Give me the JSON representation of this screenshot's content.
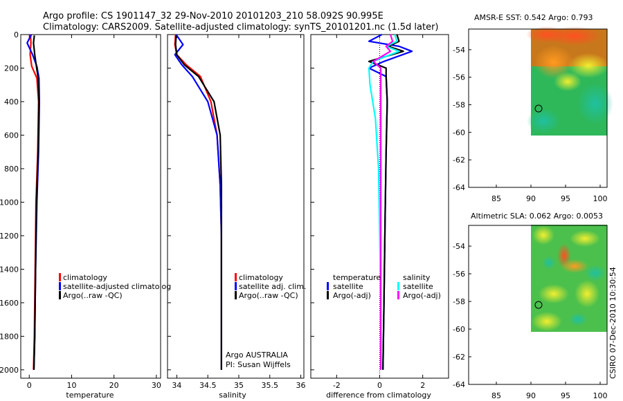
{
  "figure": {
    "title_line1": "Argo profile: CS 1901147_32 29-Nov-2010 20101203_210 58.092S 90.995E",
    "title_line2": "Climatology: CARS2009. Satellite-adjusted climatology: synTS_20101201.nc (1.5d later)",
    "footer": "CSIRO 07-Dec-2010 10:30:54"
  },
  "colors": {
    "climatology": "#ff0000",
    "satellite": "#0000ff",
    "argo": "#000000",
    "sal_satellite": "#00ffff",
    "sal_argo_adj": "#ff00ff"
  },
  "chart_data": [
    {
      "type": "line",
      "id": "temperature",
      "xlabel": "temperature",
      "xlim": [
        -2,
        31
      ],
      "ylim": [
        0,
        2050
      ],
      "xticks": [
        0,
        10,
        20,
        30
      ],
      "yticks": [
        0,
        200,
        400,
        600,
        800,
        1000,
        1200,
        1400,
        1600,
        1800,
        2000
      ],
      "legend": [
        "climatology",
        "satellite-adjusted climatolog",
        "Argo(..raw -QC)"
      ],
      "series": [
        {
          "name": "climatology",
          "color": "red",
          "x": [
            0.3,
            0.4,
            0.2,
            0.6,
            1.8,
            2.2,
            2.0,
            1.6,
            1.4,
            1.2,
            1.0
          ],
          "y": [
            0,
            50,
            120,
            190,
            260,
            400,
            700,
            1000,
            1400,
            1800,
            2000
          ]
        },
        {
          "name": "satellite",
          "color": "blue",
          "x": [
            0.5,
            -0.5,
            0.8,
            1.8,
            2.3,
            2.4,
            2.2,
            1.8,
            1.5,
            1.3,
            1.1
          ],
          "y": [
            0,
            50,
            120,
            190,
            260,
            400,
            700,
            1000,
            1400,
            1800,
            2000
          ]
        },
        {
          "name": "argo",
          "color": "black",
          "x": [
            1.2,
            1.0,
            1.3,
            1.7,
            2.1,
            2.3,
            2.1,
            1.7,
            1.5,
            1.3,
            1.1
          ],
          "y": [
            5,
            50,
            120,
            190,
            260,
            400,
            700,
            1000,
            1400,
            1800,
            2000
          ]
        }
      ]
    },
    {
      "type": "line",
      "id": "salinity",
      "xlabel": "salinity",
      "xlim": [
        33.85,
        36.05
      ],
      "ylim": [
        0,
        2050
      ],
      "xticks": [
        34,
        34.5,
        35,
        35.5,
        36
      ],
      "xticklabels": [
        "34",
        "34.5",
        "35",
        "35.5",
        "36"
      ],
      "legend": [
        "climatology",
        "satellite adj. clim.",
        "Argo(..raw -QC)"
      ],
      "annotation": [
        "Argo AUSTRALIA",
        "PI: Susan Wijffels"
      ],
      "series": [
        {
          "name": "climatology",
          "color": "red",
          "x": [
            33.98,
            33.97,
            34.0,
            34.15,
            34.38,
            34.55,
            34.65,
            34.7,
            34.72,
            34.72,
            34.72
          ],
          "y": [
            0,
            60,
            120,
            180,
            250,
            400,
            600,
            900,
            1200,
            1600,
            2000
          ]
        },
        {
          "name": "satellite",
          "color": "blue",
          "x": [
            33.99,
            34.1,
            33.97,
            34.08,
            34.25,
            34.5,
            34.65,
            34.7,
            34.72,
            34.72,
            34.72
          ],
          "y": [
            0,
            60,
            120,
            180,
            250,
            400,
            600,
            900,
            1200,
            1600,
            2000
          ]
        },
        {
          "name": "argo",
          "color": "black",
          "x": [
            33.99,
            33.98,
            34.0,
            34.12,
            34.35,
            34.6,
            34.7,
            34.72,
            34.72,
            34.72,
            34.72
          ],
          "y": [
            5,
            60,
            120,
            180,
            250,
            400,
            600,
            900,
            1200,
            1600,
            2000
          ]
        }
      ]
    },
    {
      "type": "line",
      "id": "difference",
      "xlabel": "difference from climatology",
      "xlim": [
        -3.2,
        3.2
      ],
      "ylim": [
        0,
        2050
      ],
      "xticks": [
        -2,
        0,
        2
      ],
      "legend_groups": [
        {
          "title": "temperature",
          "items": [
            "satellite",
            "Argo(-adj)"
          ]
        },
        {
          "title": "salinity",
          "items": [
            "satellite",
            "Argo(-adj)"
          ]
        }
      ],
      "series": [
        {
          "name": "temperature satellite",
          "color": "blue",
          "x": [
            0.1,
            -0.5,
            0.9,
            1.5,
            0.2,
            -0.5,
            0.3,
            0.35,
            0.3,
            0.25,
            0.2,
            0.15
          ],
          "y": [
            0,
            40,
            70,
            100,
            160,
            200,
            250,
            400,
            700,
            1100,
            1600,
            2000
          ]
        },
        {
          "name": "temperature argo",
          "color": "black",
          "x": [
            0.8,
            0.9,
            0.4,
            1.1,
            -0.5,
            0.3,
            0.3,
            0.35,
            0.3,
            0.25,
            0.2,
            0.15
          ],
          "y": [
            0,
            40,
            70,
            100,
            160,
            200,
            250,
            400,
            700,
            1100,
            1600,
            2000
          ]
        },
        {
          "name": "salinity satellite",
          "color": "cyan",
          "x": [
            0.7,
            0.8,
            0.3,
            0.9,
            -0.3,
            -0.5,
            -0.45,
            -0.2,
            -0.05,
            0.0,
            0.05,
            0.05
          ],
          "y": [
            0,
            40,
            70,
            100,
            160,
            200,
            300,
            500,
            800,
            1200,
            1600,
            2000
          ]
        },
        {
          "name": "salinity argo",
          "color": "magenta",
          "x": [
            0.5,
            0.6,
            0.3,
            0.5,
            -0.3,
            0.05,
            0.05,
            0.05,
            0.05,
            0.05,
            0.05,
            0.05
          ],
          "y": [
            0,
            40,
            70,
            100,
            160,
            200,
            300,
            500,
            800,
            1200,
            1600,
            2000
          ]
        }
      ]
    },
    {
      "type": "heatmap",
      "id": "amsre-sst",
      "title": "AMSR-E SST: 0.542 Argo: 0.793",
      "xlim": [
        81,
        101
      ],
      "ylim": [
        -64,
        -52.5
      ],
      "xticks": [
        85,
        90,
        95,
        100
      ],
      "yticks": [
        -54,
        -56,
        -58,
        -60,
        -62,
        -64
      ],
      "data_extent": {
        "lon": [
          90,
          101
        ],
        "lat": [
          -60,
          -52.5
        ]
      },
      "profile_location": {
        "lon": 91,
        "lat": -58.1
      }
    },
    {
      "type": "heatmap",
      "id": "altimetric-sla",
      "title": "Altimetric SLA: 0.062 Argo: 0.0053",
      "xlim": [
        81,
        101
      ],
      "ylim": [
        -64,
        -52.5
      ],
      "xticks": [
        85,
        90,
        95,
        100
      ],
      "yticks": [
        -54,
        -56,
        -58,
        -60,
        -62,
        -64
      ],
      "data_extent": {
        "lon": [
          90,
          101
        ],
        "lat": [
          -60,
          -52.5
        ]
      },
      "profile_location": {
        "lon": 91,
        "lat": -58.1
      }
    }
  ]
}
